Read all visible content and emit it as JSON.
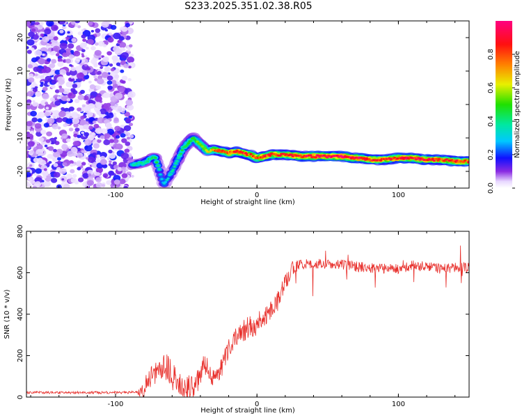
{
  "title": "S233.2025.351.02.38.R05",
  "chart_data": [
    {
      "type": "heatmap",
      "name": "spectrogram",
      "xlabel": "Height of straight line (km)",
      "ylabel": "Frequency (Hz)",
      "xlim": [
        -163,
        150
      ],
      "ylim": [
        -25,
        25
      ],
      "xticks": [
        -100,
        0,
        100
      ],
      "yticks": [
        -20,
        -10,
        0,
        10,
        20
      ],
      "colorbar": {
        "label": "Normalized spectral amplitude",
        "range": [
          0,
          1
        ],
        "ticks": [
          0.0,
          0.2,
          0.4,
          0.6,
          0.8
        ]
      },
      "noise_region_km": [
        -163,
        -88
      ],
      "ridge": {
        "x": [
          -88,
          -80,
          -72,
          -66,
          -60,
          -52,
          -45,
          -40,
          -35,
          -30,
          -25,
          -20,
          -15,
          -10,
          -5,
          0,
          10,
          20,
          30,
          40,
          50,
          60,
          70,
          80,
          90,
          100,
          110,
          120,
          130,
          140,
          150
        ],
        "y": [
          -18,
          -17.5,
          -15.5,
          -24,
          -20,
          -13,
          -10,
          -12,
          -14,
          -13.5,
          -14,
          -14.5,
          -14,
          -14.5,
          -15,
          -16,
          -15,
          -15,
          -15.5,
          -15.5,
          -15.5,
          -15.5,
          -16,
          -16.5,
          -16.5,
          -16,
          -16,
          -16.5,
          -16.5,
          -17,
          -17
        ],
        "amplitude": [
          0.35,
          0.4,
          0.45,
          0.3,
          0.35,
          0.45,
          0.5,
          0.55,
          0.6,
          0.75,
          0.8,
          0.8,
          0.85,
          0.85,
          0.8,
          0.85,
          0.85,
          0.85,
          0.9,
          0.95,
          0.95,
          0.95,
          0.95,
          0.9,
          0.85,
          0.9,
          0.9,
          0.9,
          0.85,
          0.85,
          0.85
        ]
      }
    },
    {
      "type": "line",
      "name": "snr",
      "xlabel": "Height of straight line (km)",
      "ylabel": "SNR (10 * v/v)",
      "xlim": [
        -163,
        150
      ],
      "ylim": [
        0,
        800
      ],
      "xticks": [
        -100,
        0,
        100
      ],
      "yticks": [
        0,
        200,
        400,
        600,
        800
      ],
      "color": "#e8302c",
      "trend": {
        "x": [
          -163,
          -150,
          -130,
          -110,
          -90,
          -82,
          -78,
          -74,
          -70,
          -66,
          -62,
          -58,
          -55,
          -50,
          -46,
          -42,
          -38,
          -35,
          -32,
          -28,
          -24,
          -20,
          -15,
          -10,
          -5,
          0,
          5,
          10,
          15,
          20,
          25,
          30,
          40,
          50,
          60,
          70,
          80,
          90,
          100,
          110,
          120,
          130,
          140,
          150
        ],
        "y": [
          22,
          22,
          22,
          22,
          22,
          25,
          60,
          110,
          120,
          160,
          130,
          80,
          55,
          40,
          45,
          80,
          150,
          140,
          100,
          100,
          160,
          240,
          290,
          320,
          340,
          350,
          390,
          430,
          470,
          550,
          620,
          640,
          645,
          640,
          640,
          630,
          625,
          620,
          620,
          635,
          630,
          620,
          625,
          625
        ]
      },
      "noise_amplitude": {
        "x": [
          -163,
          -85,
          -80,
          -60,
          -40,
          -30,
          -20,
          0,
          20,
          30,
          150
        ],
        "y": [
          6,
          6,
          50,
          70,
          60,
          45,
          50,
          55,
          45,
          25,
          25
        ]
      }
    }
  ]
}
